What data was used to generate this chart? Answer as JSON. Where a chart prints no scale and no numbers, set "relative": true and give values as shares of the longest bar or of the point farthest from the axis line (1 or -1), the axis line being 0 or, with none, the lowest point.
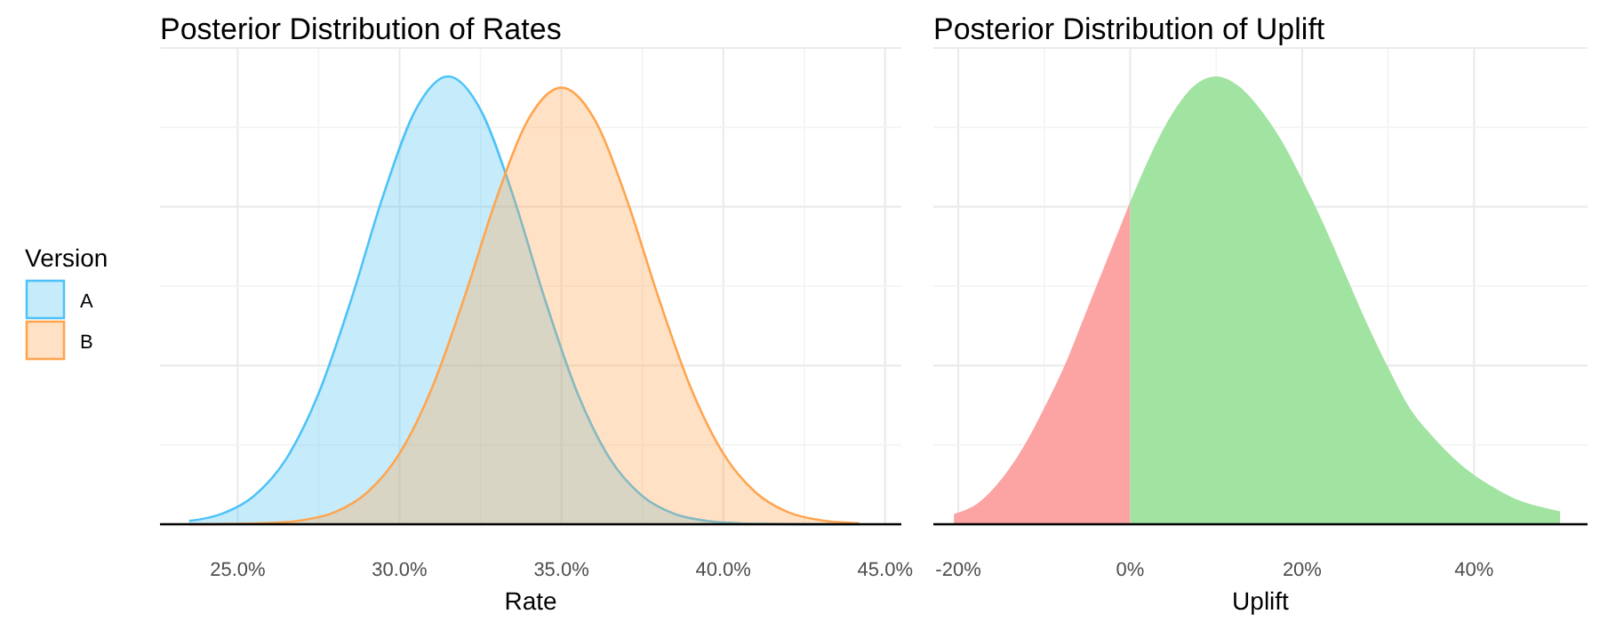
{
  "chart_data": [
    {
      "type": "area",
      "title": "Posterior Distribution of Rates",
      "xlabel": "Rate",
      "legend_title": "Version",
      "legend": "left",
      "relative": true,
      "grid": true,
      "xlim": [
        22.6,
        45.5
      ],
      "xticks": [
        {
          "value": 25,
          "label": "25.0%"
        },
        {
          "value": 30,
          "label": "30.0%"
        },
        {
          "value": 35,
          "label": "35.0%"
        },
        {
          "value": 40,
          "label": "40.0%"
        },
        {
          "value": 45,
          "label": "45.0%"
        }
      ],
      "series": [
        {
          "name": "A",
          "color": "#4fc3f7",
          "x": [
            23.5,
            24.5,
            25.5,
            26.5,
            27.5,
            28.5,
            29.5,
            30.5,
            31.5,
            32.5,
            33.5,
            34.5,
            35.5,
            36.5,
            37.5,
            38.5,
            39.5,
            40.5,
            41.5,
            42.5,
            43.5,
            44.2
          ],
          "values": [
            0.0073,
            0.023,
            0.063,
            0.146,
            0.292,
            0.5,
            0.735,
            0.926,
            1,
            0.926,
            0.735,
            0.5,
            0.292,
            0.146,
            0.063,
            0.023,
            0.0073,
            0.002,
            0.0005,
            0,
            0,
            0
          ]
        },
        {
          "name": "B",
          "color": "#ffa54f",
          "x": [
            23.5,
            24,
            25,
            26,
            27,
            28,
            29,
            30,
            31,
            32,
            33,
            34,
            35,
            36,
            37,
            38,
            39,
            40,
            41,
            42,
            43,
            44,
            44.2
          ],
          "values": [
            0,
            0.0001,
            0.0007,
            0.0027,
            0.009,
            0.027,
            0.071,
            0.158,
            0.304,
            0.506,
            0.729,
            0.907,
            0.975,
            0.907,
            0.729,
            0.506,
            0.304,
            0.158,
            0.071,
            0.027,
            0.009,
            0.0027,
            0.002
          ]
        }
      ]
    },
    {
      "type": "area",
      "title": "Posterior Distribution of Uplift",
      "xlabel": "Uplift",
      "relative": true,
      "grid": true,
      "xlim": [
        -22.9,
        53.2
      ],
      "xticks": [
        {
          "value": -20,
          "label": "-20%"
        },
        {
          "value": 0,
          "label": "0%"
        },
        {
          "value": 20,
          "label": "20%"
        },
        {
          "value": 40,
          "label": "40%"
        }
      ],
      "series": [
        {
          "color": "#fca3a3",
          "x": [
            -20.5,
            -17.5,
            -15,
            -12.5,
            -10,
            -7.5,
            -5,
            -2.5,
            0
          ],
          "values": [
            0.023,
            0.05,
            0.1,
            0.17,
            0.26,
            0.36,
            0.48,
            0.6,
            0.72
          ]
        },
        {
          "color": "#a1e3a1",
          "x": [
            0,
            2.5,
            5,
            7.5,
            10,
            12.5,
            15,
            17.5,
            20,
            22.5,
            25,
            27.5,
            30,
            32.5,
            35,
            37.5,
            40,
            42.5,
            45,
            47.5,
            50
          ],
          "values": [
            0.72,
            0.83,
            0.92,
            0.98,
            1,
            0.98,
            0.93,
            0.86,
            0.77,
            0.67,
            0.56,
            0.45,
            0.35,
            0.26,
            0.2,
            0.15,
            0.11,
            0.08,
            0.055,
            0.04,
            0.029
          ]
        }
      ]
    }
  ]
}
